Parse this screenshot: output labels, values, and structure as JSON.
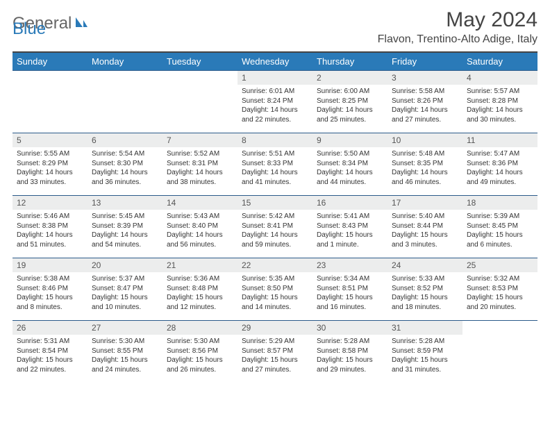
{
  "logo": {
    "text1": "General",
    "text2": "Blue"
  },
  "header": {
    "month_title": "May 2024",
    "location": "Flavon, Trentino-Alto Adige, Italy"
  },
  "colors": {
    "header_bg": "#2a7ab8",
    "header_text": "#ffffff",
    "daynum_bg": "#eceded",
    "row_border": "#2a5a8a",
    "body_text": "#333333"
  },
  "day_labels": [
    "Sunday",
    "Monday",
    "Tuesday",
    "Wednesday",
    "Thursday",
    "Friday",
    "Saturday"
  ],
  "weeks": [
    [
      {
        "blank": true
      },
      {
        "blank": true
      },
      {
        "blank": true
      },
      {
        "n": "1",
        "sunrise": "6:01 AM",
        "sunset": "8:24 PM",
        "daylight": "14 hours and 22 minutes."
      },
      {
        "n": "2",
        "sunrise": "6:00 AM",
        "sunset": "8:25 PM",
        "daylight": "14 hours and 25 minutes."
      },
      {
        "n": "3",
        "sunrise": "5:58 AM",
        "sunset": "8:26 PM",
        "daylight": "14 hours and 27 minutes."
      },
      {
        "n": "4",
        "sunrise": "5:57 AM",
        "sunset": "8:28 PM",
        "daylight": "14 hours and 30 minutes."
      }
    ],
    [
      {
        "n": "5",
        "sunrise": "5:55 AM",
        "sunset": "8:29 PM",
        "daylight": "14 hours and 33 minutes."
      },
      {
        "n": "6",
        "sunrise": "5:54 AM",
        "sunset": "8:30 PM",
        "daylight": "14 hours and 36 minutes."
      },
      {
        "n": "7",
        "sunrise": "5:52 AM",
        "sunset": "8:31 PM",
        "daylight": "14 hours and 38 minutes."
      },
      {
        "n": "8",
        "sunrise": "5:51 AM",
        "sunset": "8:33 PM",
        "daylight": "14 hours and 41 minutes."
      },
      {
        "n": "9",
        "sunrise": "5:50 AM",
        "sunset": "8:34 PM",
        "daylight": "14 hours and 44 minutes."
      },
      {
        "n": "10",
        "sunrise": "5:48 AM",
        "sunset": "8:35 PM",
        "daylight": "14 hours and 46 minutes."
      },
      {
        "n": "11",
        "sunrise": "5:47 AM",
        "sunset": "8:36 PM",
        "daylight": "14 hours and 49 minutes."
      }
    ],
    [
      {
        "n": "12",
        "sunrise": "5:46 AM",
        "sunset": "8:38 PM",
        "daylight": "14 hours and 51 minutes."
      },
      {
        "n": "13",
        "sunrise": "5:45 AM",
        "sunset": "8:39 PM",
        "daylight": "14 hours and 54 minutes."
      },
      {
        "n": "14",
        "sunrise": "5:43 AM",
        "sunset": "8:40 PM",
        "daylight": "14 hours and 56 minutes."
      },
      {
        "n": "15",
        "sunrise": "5:42 AM",
        "sunset": "8:41 PM",
        "daylight": "14 hours and 59 minutes."
      },
      {
        "n": "16",
        "sunrise": "5:41 AM",
        "sunset": "8:43 PM",
        "daylight": "15 hours and 1 minute."
      },
      {
        "n": "17",
        "sunrise": "5:40 AM",
        "sunset": "8:44 PM",
        "daylight": "15 hours and 3 minutes."
      },
      {
        "n": "18",
        "sunrise": "5:39 AM",
        "sunset": "8:45 PM",
        "daylight": "15 hours and 6 minutes."
      }
    ],
    [
      {
        "n": "19",
        "sunrise": "5:38 AM",
        "sunset": "8:46 PM",
        "daylight": "15 hours and 8 minutes."
      },
      {
        "n": "20",
        "sunrise": "5:37 AM",
        "sunset": "8:47 PM",
        "daylight": "15 hours and 10 minutes."
      },
      {
        "n": "21",
        "sunrise": "5:36 AM",
        "sunset": "8:48 PM",
        "daylight": "15 hours and 12 minutes."
      },
      {
        "n": "22",
        "sunrise": "5:35 AM",
        "sunset": "8:50 PM",
        "daylight": "15 hours and 14 minutes."
      },
      {
        "n": "23",
        "sunrise": "5:34 AM",
        "sunset": "8:51 PM",
        "daylight": "15 hours and 16 minutes."
      },
      {
        "n": "24",
        "sunrise": "5:33 AM",
        "sunset": "8:52 PM",
        "daylight": "15 hours and 18 minutes."
      },
      {
        "n": "25",
        "sunrise": "5:32 AM",
        "sunset": "8:53 PM",
        "daylight": "15 hours and 20 minutes."
      }
    ],
    [
      {
        "n": "26",
        "sunrise": "5:31 AM",
        "sunset": "8:54 PM",
        "daylight": "15 hours and 22 minutes."
      },
      {
        "n": "27",
        "sunrise": "5:30 AM",
        "sunset": "8:55 PM",
        "daylight": "15 hours and 24 minutes."
      },
      {
        "n": "28",
        "sunrise": "5:30 AM",
        "sunset": "8:56 PM",
        "daylight": "15 hours and 26 minutes."
      },
      {
        "n": "29",
        "sunrise": "5:29 AM",
        "sunset": "8:57 PM",
        "daylight": "15 hours and 27 minutes."
      },
      {
        "n": "30",
        "sunrise": "5:28 AM",
        "sunset": "8:58 PM",
        "daylight": "15 hours and 29 minutes."
      },
      {
        "n": "31",
        "sunrise": "5:28 AM",
        "sunset": "8:59 PM",
        "daylight": "15 hours and 31 minutes."
      },
      {
        "blank": true
      }
    ]
  ],
  "labels": {
    "sunrise_prefix": "Sunrise: ",
    "sunset_prefix": "Sunset: ",
    "daylight_prefix": "Daylight: "
  }
}
